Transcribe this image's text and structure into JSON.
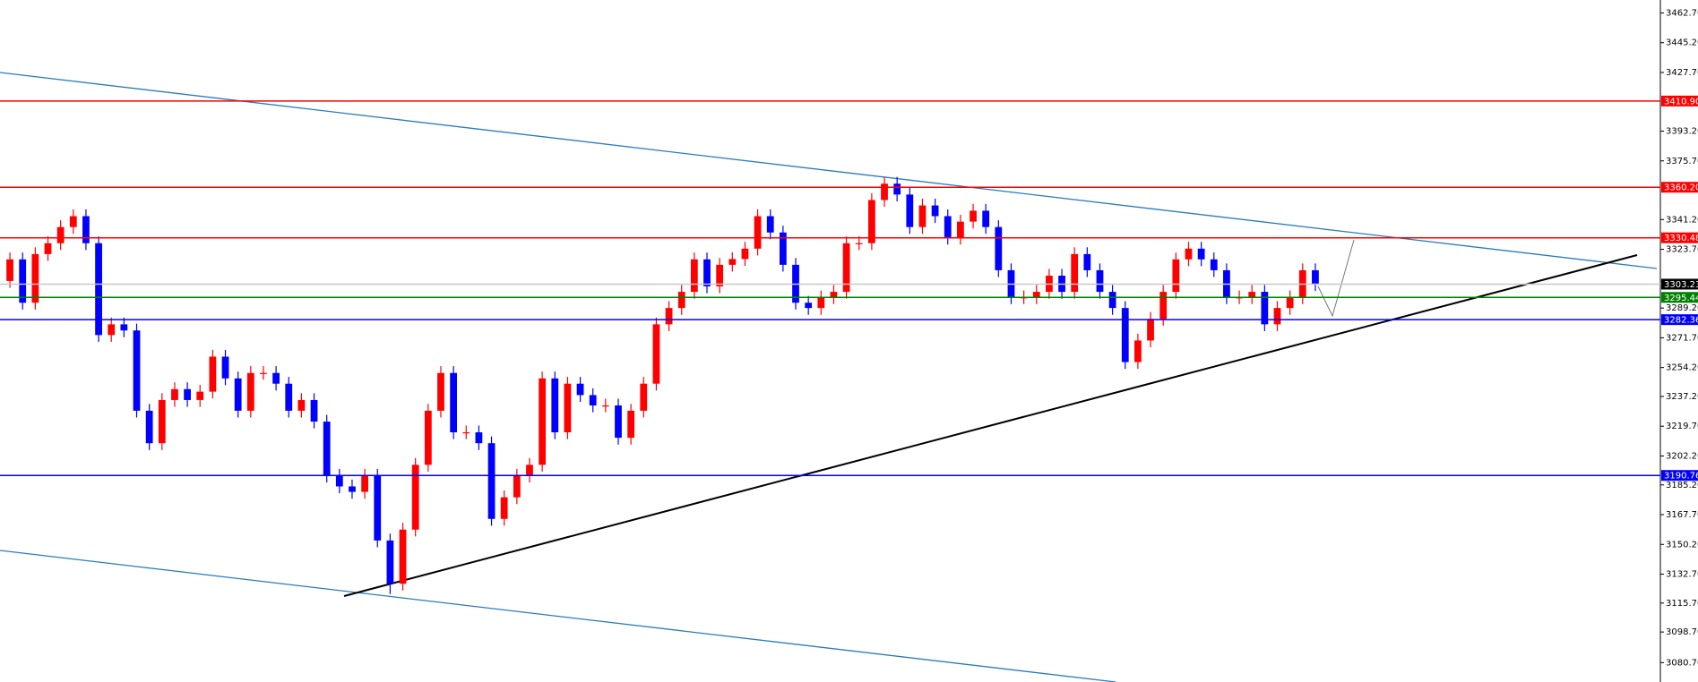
{
  "chart_data": {
    "type": "candlestick",
    "up_color": "#ff0000",
    "down_color": "#0000ff",
    "ylim": [
      3069.3,
      3470.3
    ],
    "yticks": [
      {
        "value": 3462.7,
        "label": "3462.70"
      },
      {
        "value": 3445.2,
        "label": "3445.20"
      },
      {
        "value": 3427.7,
        "label": "3427.70"
      },
      {
        "value": 3393.2,
        "label": "3393.20"
      },
      {
        "value": 3375.7,
        "label": "3375.70"
      },
      {
        "value": 3341.2,
        "label": "3341.20"
      },
      {
        "value": 3323.7,
        "label": "3323.70"
      },
      {
        "value": 3289.2,
        "label": "3289.20"
      },
      {
        "value": 3271.7,
        "label": "3271.70"
      },
      {
        "value": 3254.2,
        "label": "3254.20"
      },
      {
        "value": 3237.2,
        "label": "3237.20"
      },
      {
        "value": 3219.7,
        "label": "3219.70"
      },
      {
        "value": 3202.2,
        "label": "3202.20"
      },
      {
        "value": 3185.2,
        "label": "3185.20"
      },
      {
        "value": 3167.7,
        "label": "3167.70"
      },
      {
        "value": 3150.2,
        "label": "3150.20"
      },
      {
        "value": 3132.7,
        "label": "3132.70"
      },
      {
        "value": 3115.7,
        "label": "3115.70"
      },
      {
        "value": 3098.7,
        "label": "3098.70"
      },
      {
        "value": 3080.7,
        "label": "3080.70"
      }
    ],
    "levels": [
      {
        "value": 3410.9,
        "label": "3410.90",
        "color": "#ff0000"
      },
      {
        "value": 3360.2,
        "label": "3360.20",
        "color": "#ff0000"
      },
      {
        "value": 3330.48,
        "label": "3330.48",
        "color": "#ff0000"
      },
      {
        "value": 3303.23,
        "label": "3303.23",
        "color": "#c8c8c8",
        "label_color": "#000000"
      },
      {
        "value": 3295.44,
        "label": "3295.44",
        "color": "#008000"
      },
      {
        "value": 3282.36,
        "label": "3282.36",
        "color": "#0000ff"
      },
      {
        "value": 3190.76,
        "label": "3190.76",
        "color": "#0000ff"
      }
    ],
    "open": [
      3305.1,
      3317.8,
      3292.3,
      3320.9,
      3327.3,
      3336.8,
      3343.2,
      3327.3,
      3273.3,
      3279.6,
      3276.0,
      3228.8,
      3209.7,
      3235.1,
      3241.5,
      3235.1,
      3240.0,
      3260.6,
      3247.8,
      3228.8,
      3251.0,
      3251.0,
      3244.7,
      3228.8,
      3235.1,
      3222.4,
      3190.6,
      3184.3,
      3181.1,
      3190.6,
      3152.5,
      3127.1,
      3158.9,
      3197.0,
      3228.8,
      3251.0,
      3216.1,
      3216.1,
      3209.7,
      3165.2,
      3177.9,
      3190.6,
      3197.0,
      3247.8,
      3216.1,
      3244.7,
      3238.0,
      3231.9,
      3231.9,
      3212.9,
      3228.8,
      3244.7,
      3279.6,
      3289.2,
      3298.7,
      3317.8,
      3301.9,
      3314.6,
      3318.0,
      3324.1,
      3343.2,
      3333.6,
      3314.6,
      3292.3,
      3289.2,
      3295.5,
      3298.7,
      3327.3,
      3327.3,
      3352.7,
      3362.3,
      3355.9,
      3336.8,
      3349.5,
      3343.2,
      3330.5,
      3340.0,
      3346.4,
      3336.8,
      3311.4,
      3295.5,
      3295.5,
      3298.7,
      3308.2,
      3298.7,
      3320.9,
      3311.4,
      3298.7,
      3289.2,
      3257.4,
      3270.1,
      3282.8,
      3298.7,
      3317.8,
      3324.1,
      3317.8,
      3311.4,
      3295.5,
      3295.5,
      3298.7,
      3279.6,
      3289.2,
      3295.5,
      3311.4
    ],
    "high": [
      3321.8,
      3321.8,
      3324.9,
      3331.3,
      3340.8,
      3347.2,
      3347.2,
      3331.3,
      3283.6,
      3283.6,
      3280.0,
      3232.8,
      3239.1,
      3245.5,
      3245.5,
      3244.0,
      3264.6,
      3264.6,
      3251.8,
      3255.0,
      3255.0,
      3255.0,
      3248.7,
      3239.1,
      3239.1,
      3226.4,
      3194.6,
      3188.3,
      3194.6,
      3194.6,
      3156.5,
      3162.9,
      3201.0,
      3232.8,
      3255.0,
      3255.0,
      3220.1,
      3220.1,
      3213.7,
      3181.9,
      3194.6,
      3201.0,
      3251.8,
      3251.8,
      3248.7,
      3248.7,
      3242.0,
      3235.9,
      3235.9,
      3232.8,
      3248.7,
      3283.6,
      3293.2,
      3302.7,
      3321.8,
      3321.8,
      3318.6,
      3322.0,
      3328.1,
      3347.2,
      3347.2,
      3337.6,
      3318.6,
      3296.3,
      3299.5,
      3302.7,
      3331.3,
      3331.3,
      3356.7,
      3366.3,
      3366.3,
      3359.9,
      3353.5,
      3353.5,
      3347.2,
      3344.0,
      3350.4,
      3350.4,
      3340.8,
      3315.4,
      3299.5,
      3302.7,
      3312.2,
      3312.2,
      3324.9,
      3324.9,
      3315.4,
      3302.7,
      3293.2,
      3274.1,
      3286.8,
      3302.7,
      3321.8,
      3328.1,
      3328.1,
      3321.8,
      3315.4,
      3299.5,
      3302.7,
      3302.7,
      3293.2,
      3299.5,
      3315.4,
      3315.4
    ],
    "low": [
      3301.1,
      3288.3,
      3288.3,
      3316.9,
      3323.3,
      3332.8,
      3323.3,
      3269.3,
      3269.3,
      3272.0,
      3224.8,
      3205.7,
      3205.7,
      3231.1,
      3231.1,
      3231.1,
      3236.0,
      3243.8,
      3224.8,
      3224.8,
      3247.0,
      3240.7,
      3224.8,
      3224.8,
      3218.4,
      3186.6,
      3180.3,
      3177.1,
      3177.1,
      3148.5,
      3121.0,
      3123.1,
      3154.9,
      3193.0,
      3224.8,
      3212.1,
      3212.1,
      3205.7,
      3161.2,
      3161.2,
      3173.9,
      3186.6,
      3193.0,
      3212.1,
      3212.1,
      3234.0,
      3227.9,
      3227.9,
      3208.9,
      3208.9,
      3224.8,
      3240.7,
      3275.6,
      3285.2,
      3294.7,
      3297.9,
      3297.9,
      3310.6,
      3314.0,
      3320.1,
      3329.6,
      3310.6,
      3288.3,
      3285.2,
      3285.2,
      3291.5,
      3294.7,
      3323.3,
      3323.3,
      3348.7,
      3351.9,
      3332.8,
      3332.8,
      3339.2,
      3326.5,
      3326.5,
      3336.0,
      3332.8,
      3307.4,
      3291.5,
      3291.5,
      3291.5,
      3294.7,
      3294.7,
      3294.7,
      3307.4,
      3294.7,
      3285.2,
      3253.4,
      3253.4,
      3266.1,
      3278.8,
      3294.7,
      3313.8,
      3313.8,
      3307.4,
      3291.5,
      3291.5,
      3291.5,
      3275.6,
      3275.6,
      3285.2,
      3291.5,
      3299.2
    ],
    "close": [
      3317.8,
      3292.3,
      3320.9,
      3327.3,
      3336.8,
      3343.2,
      3327.3,
      3273.3,
      3279.6,
      3276.0,
      3228.8,
      3209.7,
      3235.1,
      3241.5,
      3235.1,
      3240.0,
      3260.6,
      3247.8,
      3228.8,
      3251.0,
      3251.0,
      3244.7,
      3228.8,
      3235.1,
      3222.4,
      3190.6,
      3184.3,
      3181.1,
      3190.6,
      3152.5,
      3127.1,
      3158.9,
      3197.0,
      3228.8,
      3251.0,
      3216.1,
      3216.1,
      3209.7,
      3165.2,
      3177.9,
      3190.6,
      3197.0,
      3247.8,
      3216.1,
      3244.7,
      3238.0,
      3231.9,
      3231.9,
      3212.9,
      3228.8,
      3244.7,
      3279.6,
      3289.2,
      3298.7,
      3317.8,
      3301.9,
      3314.6,
      3318.0,
      3324.1,
      3343.2,
      3333.6,
      3314.6,
      3292.3,
      3289.2,
      3295.5,
      3298.7,
      3327.3,
      3327.3,
      3352.7,
      3362.3,
      3355.9,
      3336.8,
      3349.5,
      3343.2,
      3330.5,
      3340.0,
      3346.4,
      3336.8,
      3311.4,
      3295.5,
      3295.5,
      3298.7,
      3308.2,
      3298.7,
      3320.9,
      3311.4,
      3298.7,
      3289.2,
      3257.4,
      3270.1,
      3282.8,
      3298.7,
      3317.8,
      3324.1,
      3317.8,
      3311.4,
      3295.5,
      3295.5,
      3298.7,
      3279.6,
      3289.2,
      3295.5,
      3311.4,
      3303.2
    ]
  }
}
